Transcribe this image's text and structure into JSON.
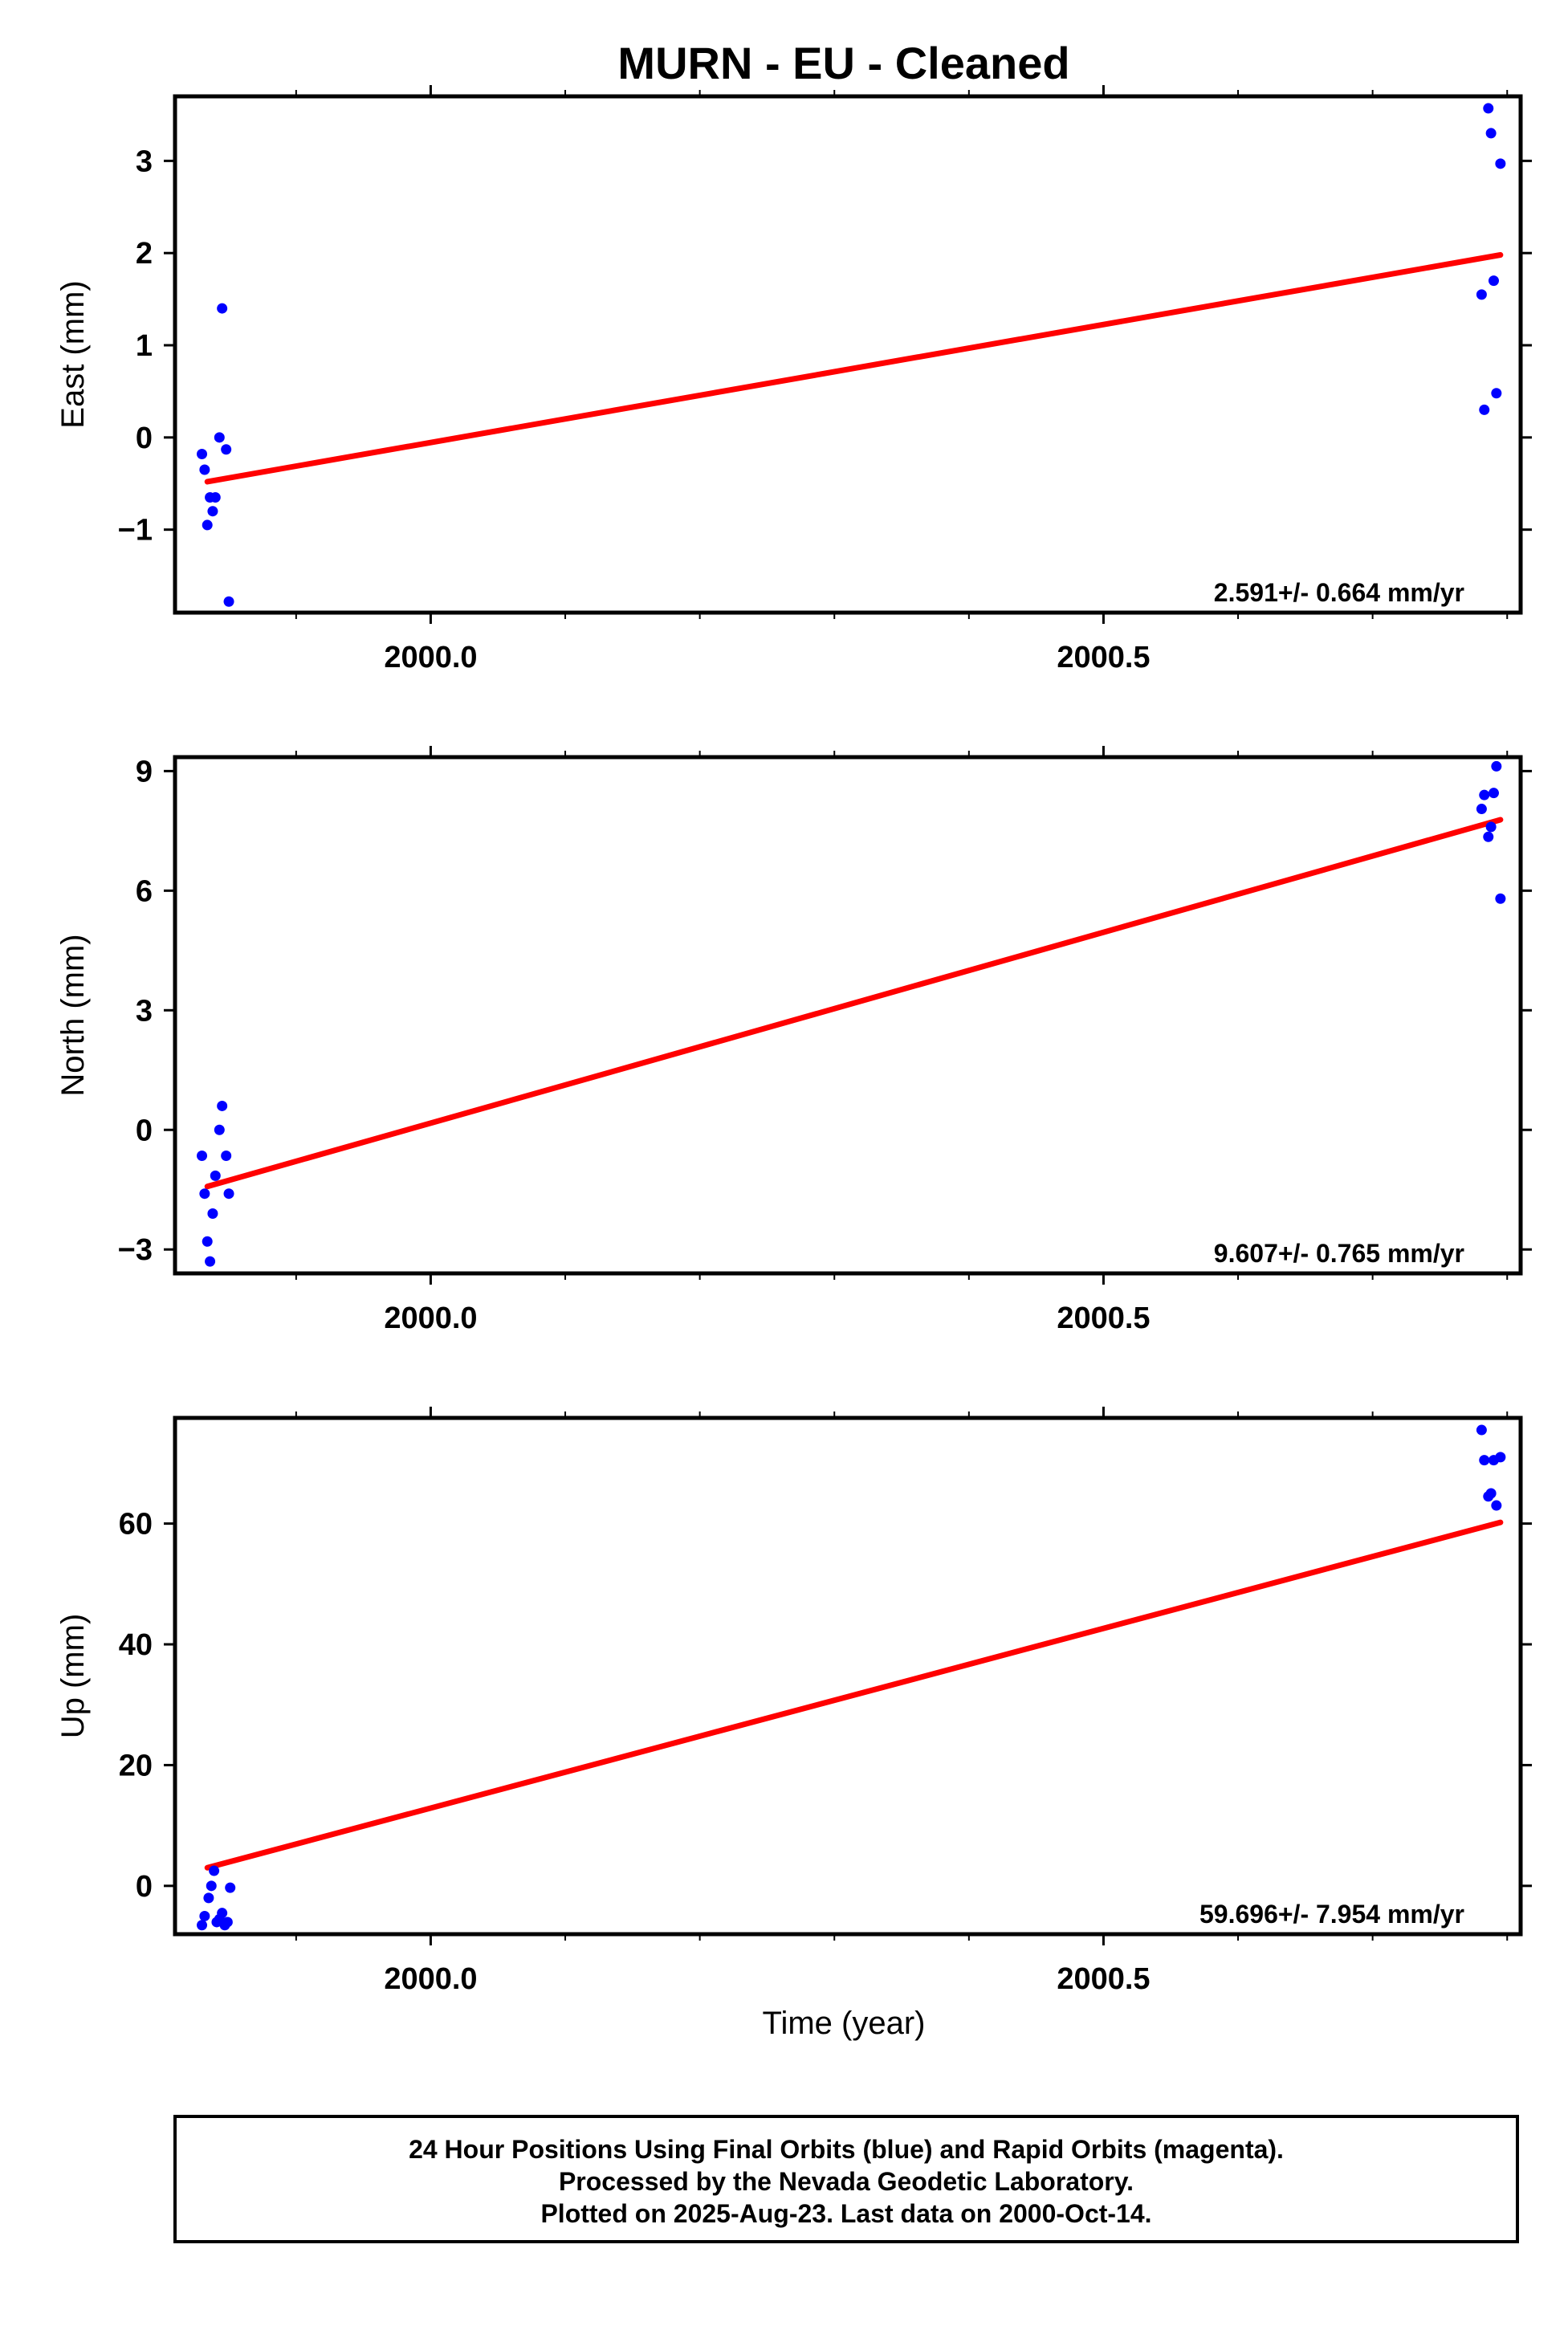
{
  "title": "MURN  - EU - Cleaned",
  "xlabel": "Time (year)",
  "footer": {
    "line1": "24 Hour Positions Using Final Orbits (blue) and Rapid Orbits (magenta).",
    "line2": "Processed by the Nevada Geodetic Laboratory.",
    "line3": "Plotted on 2025-Aug-23. Last data on 2000-Oct-14."
  },
  "colors": {
    "points": "#0000ff",
    "fit": "#ff0000",
    "axes": "#000000"
  },
  "chart_data": [
    {
      "type": "scatter",
      "name": "east",
      "ylabel": "East (mm)",
      "xlim": [
        1999.81,
        2000.81
      ],
      "ylim": [
        -1.9,
        3.7
      ],
      "xticks": [
        2000.0,
        2000.5
      ],
      "xtick_labels": [
        "2000.0",
        "2000.5"
      ],
      "yticks": [
        -1,
        0,
        1,
        2,
        3
      ],
      "ytick_labels": [
        "−1",
        "0",
        "1",
        "2",
        "3"
      ],
      "rate_label": "2.591+/- 0.664 mm/yr",
      "points": {
        "x": [
          1999.83,
          1999.832,
          1999.834,
          1999.836,
          1999.838,
          1999.84,
          1999.843,
          1999.845,
          1999.848,
          1999.85,
          2000.781,
          2000.783,
          2000.786,
          2000.788,
          2000.79,
          2000.792,
          2000.795
        ],
        "y": [
          -0.18,
          -0.35,
          -0.95,
          -0.65,
          -0.8,
          -0.65,
          0.0,
          1.4,
          -0.13,
          -1.78,
          1.55,
          0.3,
          3.57,
          3.3,
          1.7,
          0.48,
          2.97
        ]
      },
      "fit": {
        "x": [
          1999.834,
          2000.795
        ],
        "y": [
          -0.48,
          1.98
        ]
      }
    },
    {
      "type": "scatter",
      "name": "north",
      "ylabel": "North (mm)",
      "xlim": [
        1999.81,
        2000.81
      ],
      "ylim": [
        -3.6,
        9.35
      ],
      "xticks": [
        2000.0,
        2000.5
      ],
      "xtick_labels": [
        "2000.0",
        "2000.5"
      ],
      "yticks": [
        -3,
        0,
        3,
        6,
        9
      ],
      "ytick_labels": [
        "−3",
        "0",
        "3",
        "6",
        "9"
      ],
      "rate_label": "9.607+/- 0.765 mm/yr",
      "points": {
        "x": [
          1999.83,
          1999.832,
          1999.834,
          1999.836,
          1999.838,
          1999.84,
          1999.843,
          1999.845,
          1999.848,
          1999.85,
          2000.781,
          2000.783,
          2000.786,
          2000.788,
          2000.79,
          2000.792,
          2000.795
        ],
        "y": [
          -0.65,
          -1.6,
          -2.8,
          -3.3,
          -2.1,
          -1.15,
          0.0,
          0.6,
          -0.65,
          -1.6,
          8.05,
          8.4,
          7.35,
          7.6,
          8.45,
          9.12,
          5.8
        ]
      },
      "fit": {
        "x": [
          1999.834,
          2000.795
        ],
        "y": [
          -1.42,
          7.78
        ]
      }
    },
    {
      "type": "scatter",
      "name": "up",
      "ylabel": "Up (mm)",
      "xlim": [
        1999.81,
        2000.81
      ],
      "ylim": [
        -8.0,
        77.5
      ],
      "xticks": [
        2000.0,
        2000.5
      ],
      "xtick_labels": [
        "2000.0",
        "2000.5"
      ],
      "yticks": [
        0,
        20,
        40,
        60
      ],
      "ytick_labels": [
        "0",
        "20",
        "40",
        "60"
      ],
      "rate_label": "59.696+/- 7.954 mm/yr",
      "points": {
        "x": [
          1999.83,
          1999.832,
          1999.835,
          1999.837,
          1999.839,
          1999.841,
          1999.843,
          1999.845,
          1999.847,
          1999.849,
          1999.851,
          2000.781,
          2000.783,
          2000.786,
          2000.788,
          2000.79,
          2000.792,
          2000.795
        ],
        "y": [
          -6.5,
          -5.0,
          -2.0,
          0.0,
          2.5,
          -6.0,
          -5.5,
          -4.5,
          -6.5,
          -6.0,
          -0.3,
          75.5,
          70.5,
          64.5,
          65.0,
          70.5,
          63.0,
          71.0
        ]
      },
      "fit": {
        "x": [
          1999.834,
          2000.795
        ],
        "y": [
          3.0,
          60.2
        ]
      }
    }
  ]
}
